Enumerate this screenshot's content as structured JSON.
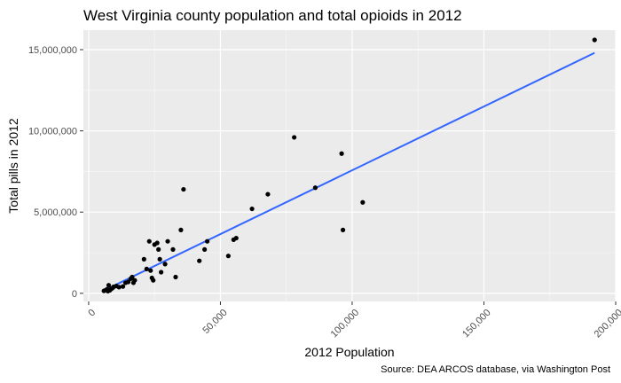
{
  "chart_data": {
    "type": "scatter",
    "title": "West Virginia county population and total opioids in 2012",
    "xlabel": "2012 Population",
    "ylabel": "Total pills in 2012",
    "caption": "Source: DEA ARCOS database, via Washington Post",
    "xlim": [
      -2000,
      200000
    ],
    "ylim": [
      -500000,
      16200000
    ],
    "x_ticks": [
      0,
      50000,
      100000,
      150000,
      200000
    ],
    "x_tick_labels": [
      "0",
      "50,000",
      "100,000",
      "150,000",
      "200,000"
    ],
    "y_ticks": [
      0,
      5000000,
      10000000,
      15000000
    ],
    "y_tick_labels": [
      "0",
      "5,000,000",
      "10,000,000",
      "15,000,000"
    ],
    "grid": true,
    "panel_background": "#ebebeb",
    "point_color": "#000000",
    "trend_line": {
      "type": "linear",
      "color": "#3366ff",
      "x": [
        5500,
        192000
      ],
      "y": [
        150000,
        14800000
      ]
    },
    "points": [
      {
        "x": 5800,
        "y": 150000
      },
      {
        "x": 6500,
        "y": 200000
      },
      {
        "x": 7000,
        "y": 250000
      },
      {
        "x": 7300,
        "y": 130000
      },
      {
        "x": 7600,
        "y": 500000
      },
      {
        "x": 8000,
        "y": 180000
      },
      {
        "x": 8500,
        "y": 260000
      },
      {
        "x": 9000,
        "y": 320000
      },
      {
        "x": 9500,
        "y": 400000
      },
      {
        "x": 10500,
        "y": 450000
      },
      {
        "x": 11500,
        "y": 380000
      },
      {
        "x": 13000,
        "y": 420000
      },
      {
        "x": 14000,
        "y": 650000
      },
      {
        "x": 15000,
        "y": 700000
      },
      {
        "x": 16000,
        "y": 900000
      },
      {
        "x": 16500,
        "y": 1000000
      },
      {
        "x": 17000,
        "y": 650000
      },
      {
        "x": 17500,
        "y": 800000
      },
      {
        "x": 21000,
        "y": 2100000
      },
      {
        "x": 22000,
        "y": 1500000
      },
      {
        "x": 23000,
        "y": 3200000
      },
      {
        "x": 23500,
        "y": 1400000
      },
      {
        "x": 24000,
        "y": 950000
      },
      {
        "x": 24500,
        "y": 800000
      },
      {
        "x": 25000,
        "y": 3000000
      },
      {
        "x": 26000,
        "y": 3100000
      },
      {
        "x": 26500,
        "y": 2700000
      },
      {
        "x": 27000,
        "y": 2100000
      },
      {
        "x": 27500,
        "y": 1300000
      },
      {
        "x": 29000,
        "y": 1800000
      },
      {
        "x": 30000,
        "y": 3200000
      },
      {
        "x": 32000,
        "y": 2700000
      },
      {
        "x": 33000,
        "y": 1000000
      },
      {
        "x": 35000,
        "y": 3900000
      },
      {
        "x": 36000,
        "y": 6400000
      },
      {
        "x": 42000,
        "y": 2000000
      },
      {
        "x": 44000,
        "y": 2700000
      },
      {
        "x": 45000,
        "y": 3200000
      },
      {
        "x": 53000,
        "y": 2300000
      },
      {
        "x": 55000,
        "y": 3300000
      },
      {
        "x": 56000,
        "y": 3400000
      },
      {
        "x": 62000,
        "y": 5200000
      },
      {
        "x": 68000,
        "y": 6100000
      },
      {
        "x": 78000,
        "y": 9600000
      },
      {
        "x": 86000,
        "y": 6500000
      },
      {
        "x": 96000,
        "y": 8600000
      },
      {
        "x": 96500,
        "y": 3900000
      },
      {
        "x": 104000,
        "y": 5600000
      },
      {
        "x": 192000,
        "y": 15600000
      }
    ]
  }
}
